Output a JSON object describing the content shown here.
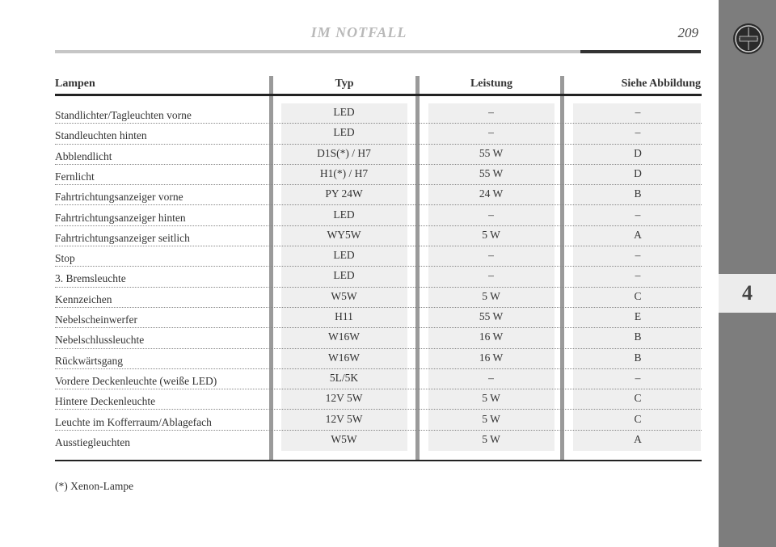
{
  "header": {
    "title": "IM NOTFALL",
    "page_number": "209"
  },
  "sidebar": {
    "chapter": "4"
  },
  "table": {
    "headers": [
      "Lampen",
      "Typ",
      "Leistung",
      "Siehe Abbildung"
    ],
    "rows": [
      {
        "lampe": "Standlichter/Tagleuchten vorne",
        "typ": "LED",
        "leistung": "–",
        "abbildung": "–"
      },
      {
        "lampe": "Standleuchten hinten",
        "typ": "LED",
        "leistung": "–",
        "abbildung": "–"
      },
      {
        "lampe": "Abblendlicht",
        "typ": "D1S(*) / H7",
        "leistung": "55 W",
        "abbildung": "D"
      },
      {
        "lampe": "Fernlicht",
        "typ": "H1(*) / H7",
        "leistung": "55 W",
        "abbildung": "D"
      },
      {
        "lampe": "Fahrtrichtungsanzeiger vorne",
        "typ": "PY 24W",
        "leistung": "24 W",
        "abbildung": "B"
      },
      {
        "lampe": "Fahrtrichtungsanzeiger hinten",
        "typ": "LED",
        "leistung": "–",
        "abbildung": "–"
      },
      {
        "lampe": "Fahrtrichtungsanzeiger seitlich",
        "typ": "WY5W",
        "leistung": "5 W",
        "abbildung": "A"
      },
      {
        "lampe": "Stop",
        "typ": "LED",
        "leistung": "–",
        "abbildung": "–"
      },
      {
        "lampe": "3. Bremsleuchte",
        "typ": "LED",
        "leistung": "–",
        "abbildung": "–"
      },
      {
        "lampe": "Kennzeichen",
        "typ": "W5W",
        "leistung": "5 W",
        "abbildung": "C"
      },
      {
        "lampe": "Nebelscheinwerfer",
        "typ": "H11",
        "leistung": "55 W",
        "abbildung": "E"
      },
      {
        "lampe": "Nebelschlussleuchte",
        "typ": "W16W",
        "leistung": "16 W",
        "abbildung": "B"
      },
      {
        "lampe": "Rückwärtsgang",
        "typ": "W16W",
        "leistung": "16 W",
        "abbildung": "B"
      },
      {
        "lampe": "Vordere Deckenleuchte (weiße LED)",
        "typ": "5L/5K",
        "leistung": "–",
        "abbildung": "–"
      },
      {
        "lampe": "Hintere Deckenleuchte",
        "typ": "12V 5W",
        "leistung": "5 W",
        "abbildung": "C"
      },
      {
        "lampe": "Leuchte im Kofferraum/Ablagefach",
        "typ": "12V 5W",
        "leistung": "5 W",
        "abbildung": "C"
      },
      {
        "lampe": "Ausstiegleuchten",
        "typ": "W5W",
        "leistung": "5 W",
        "abbildung": "A"
      }
    ]
  },
  "footnote": "(*) Xenon-Lampe"
}
